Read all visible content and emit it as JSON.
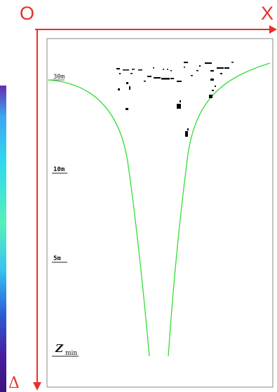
{
  "axes": {
    "origin_label": "O",
    "x_label": "X",
    "z_label": "Δ",
    "color": "#e8302a"
  },
  "depth_labels": {
    "top": "30m",
    "upper": "10m",
    "lower": "5m",
    "bottom_main": "Z",
    "bottom_sub": "min"
  },
  "colors": {
    "curve": "#33dd33",
    "frame": "#888888",
    "debris": "#000000"
  }
}
